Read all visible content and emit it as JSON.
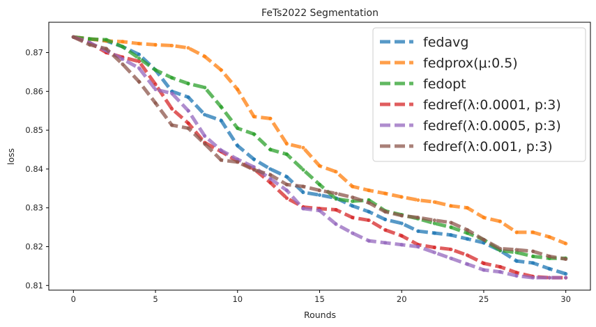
{
  "chart_data": {
    "type": "line",
    "title": "FeTs2022 Segmentation",
    "xlabel": "Rounds",
    "ylabel": "loss",
    "xlim": [
      -1.5,
      31.5
    ],
    "ylim": [
      0.8088,
      0.8778
    ],
    "xticks": [
      0,
      5,
      10,
      15,
      20,
      25,
      30
    ],
    "xtick_labels": [
      "0",
      "5",
      "10",
      "15",
      "20",
      "25",
      "30"
    ],
    "yticks": [
      0.81,
      0.82,
      0.83,
      0.84,
      0.85,
      0.86,
      0.87
    ],
    "ytick_labels": [
      "0.81",
      "0.82",
      "0.83",
      "0.84",
      "0.85",
      "0.86",
      "0.87"
    ],
    "grid": false,
    "legend_position": "top-right",
    "x": [
      0,
      1,
      2,
      3,
      4,
      5,
      6,
      7,
      8,
      9,
      10,
      11,
      12,
      13,
      14,
      15,
      16,
      17,
      18,
      19,
      20,
      21,
      22,
      23,
      24,
      25,
      26,
      27,
      28,
      29,
      30
    ],
    "series": [
      {
        "name": "fedavg",
        "color": "#1f77b4",
        "values": [
          0.874,
          0.8735,
          0.873,
          0.8715,
          0.8695,
          0.8655,
          0.86,
          0.8585,
          0.854,
          0.8525,
          0.846,
          0.8425,
          0.84,
          0.838,
          0.834,
          0.8333,
          0.8325,
          0.8305,
          0.829,
          0.827,
          0.826,
          0.824,
          0.8235,
          0.823,
          0.822,
          0.821,
          0.819,
          0.8163,
          0.8158,
          0.8143,
          0.813
        ]
      },
      {
        "name": "fedprox(μ:0.5)",
        "color": "#ff7f0e",
        "values": [
          0.874,
          0.8735,
          0.873,
          0.8728,
          0.8723,
          0.872,
          0.8718,
          0.8712,
          0.869,
          0.8655,
          0.8605,
          0.8535,
          0.853,
          0.8465,
          0.8455,
          0.8408,
          0.8393,
          0.8355,
          0.8345,
          0.8337,
          0.8328,
          0.832,
          0.8315,
          0.8305,
          0.83,
          0.8275,
          0.8265,
          0.8237,
          0.8237,
          0.8225,
          0.8208
        ]
      },
      {
        "name": "fedopt",
        "color": "#2ca02c",
        "values": [
          0.874,
          0.8735,
          0.8733,
          0.8715,
          0.8685,
          0.8655,
          0.8635,
          0.862,
          0.861,
          0.856,
          0.8505,
          0.849,
          0.845,
          0.8438,
          0.8398,
          0.836,
          0.8323,
          0.8317,
          0.832,
          0.8292,
          0.8282,
          0.8272,
          0.826,
          0.825,
          0.8235,
          0.8218,
          0.819,
          0.8185,
          0.8175,
          0.817,
          0.817
        ]
      },
      {
        "name": "fedref(λ:0.0001, p:3)",
        "color": "#d62728",
        "values": [
          0.874,
          0.8725,
          0.87,
          0.8688,
          0.8677,
          0.8618,
          0.8555,
          0.8518,
          0.8468,
          0.8445,
          0.842,
          0.84,
          0.8365,
          0.8325,
          0.8302,
          0.8298,
          0.8295,
          0.8275,
          0.8268,
          0.8243,
          0.8228,
          0.8205,
          0.8198,
          0.8193,
          0.8178,
          0.8157,
          0.8148,
          0.8133,
          0.8123,
          0.812,
          0.812
        ]
      },
      {
        "name": "fedref(λ:0.0005, p:3)",
        "color": "#9467bd",
        "values": [
          0.874,
          0.8725,
          0.8705,
          0.8683,
          0.866,
          0.8605,
          0.8595,
          0.855,
          0.8485,
          0.8448,
          0.8425,
          0.8405,
          0.8375,
          0.8345,
          0.8298,
          0.8293,
          0.8258,
          0.8235,
          0.8215,
          0.821,
          0.8205,
          0.82,
          0.8185,
          0.817,
          0.8155,
          0.814,
          0.8135,
          0.8125,
          0.812,
          0.812,
          0.812
        ]
      },
      {
        "name": "fedref(λ:0.001, p:3)",
        "color": "#8c564b",
        "values": [
          0.874,
          0.872,
          0.871,
          0.867,
          0.8625,
          0.857,
          0.8513,
          0.8505,
          0.8465,
          0.8423,
          0.8418,
          0.8398,
          0.8385,
          0.836,
          0.8355,
          0.8345,
          0.8337,
          0.8327,
          0.8313,
          0.829,
          0.828,
          0.8275,
          0.8268,
          0.8262,
          0.8243,
          0.8218,
          0.8195,
          0.8192,
          0.8188,
          0.8175,
          0.8168
        ]
      }
    ]
  }
}
